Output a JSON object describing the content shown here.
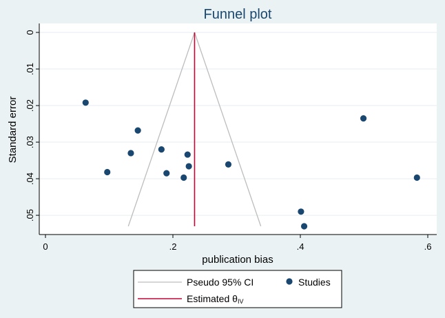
{
  "chart_data": {
    "type": "scatter",
    "title": "Funnel plot",
    "xlabel": "publication bias",
    "ylabel": "Standard error",
    "xlim": [
      0,
      0.6
    ],
    "ylim": [
      0,
      0.053
    ],
    "y_reversed": true,
    "x_ticks": [
      {
        "value": 0,
        "label": "0"
      },
      {
        "value": 0.2,
        "label": ".2"
      },
      {
        "value": 0.4,
        "label": ".4"
      },
      {
        "value": 0.6,
        "label": ".6"
      }
    ],
    "y_ticks": [
      {
        "value": 0,
        "label": "0"
      },
      {
        "value": 0.01,
        "label": ".01"
      },
      {
        "value": 0.02,
        "label": ".02"
      },
      {
        "value": 0.03,
        "label": ".03"
      },
      {
        "value": 0.04,
        "label": ".04"
      },
      {
        "value": 0.05,
        "label": ".05"
      }
    ],
    "grid": "horizontal",
    "series": [
      {
        "name": "Studies",
        "type": "scatter",
        "color": "#1a476f",
        "points": [
          {
            "x": 0.063,
            "y": 0.0192
          },
          {
            "x": 0.097,
            "y": 0.0382
          },
          {
            "x": 0.134,
            "y": 0.033
          },
          {
            "x": 0.145,
            "y": 0.0268
          },
          {
            "x": 0.182,
            "y": 0.032
          },
          {
            "x": 0.19,
            "y": 0.0385
          },
          {
            "x": 0.217,
            "y": 0.0397
          },
          {
            "x": 0.223,
            "y": 0.0334
          },
          {
            "x": 0.225,
            "y": 0.0366
          },
          {
            "x": 0.287,
            "y": 0.0361
          },
          {
            "x": 0.401,
            "y": 0.049
          },
          {
            "x": 0.406,
            "y": 0.053
          },
          {
            "x": 0.499,
            "y": 0.0235
          },
          {
            "x": 0.583,
            "y": 0.0397
          }
        ]
      },
      {
        "name": "Pseudo 95% CI",
        "type": "line",
        "color": "#bdbdbd",
        "lines": [
          [
            {
              "x": 0.234,
              "y": 0
            },
            {
              "x": 0.13,
              "y": 0.053
            }
          ],
          [
            {
              "x": 0.234,
              "y": 0
            },
            {
              "x": 0.338,
              "y": 0.053
            }
          ]
        ]
      },
      {
        "name": "Estimated θIV",
        "name_main": "Estimated θ",
        "name_sub": "IV",
        "type": "vline",
        "color": "#c10534",
        "x": 0.234,
        "y_range": [
          0,
          0.053
        ]
      }
    ],
    "legend": {
      "position": "bottom",
      "columns": 2
    }
  }
}
